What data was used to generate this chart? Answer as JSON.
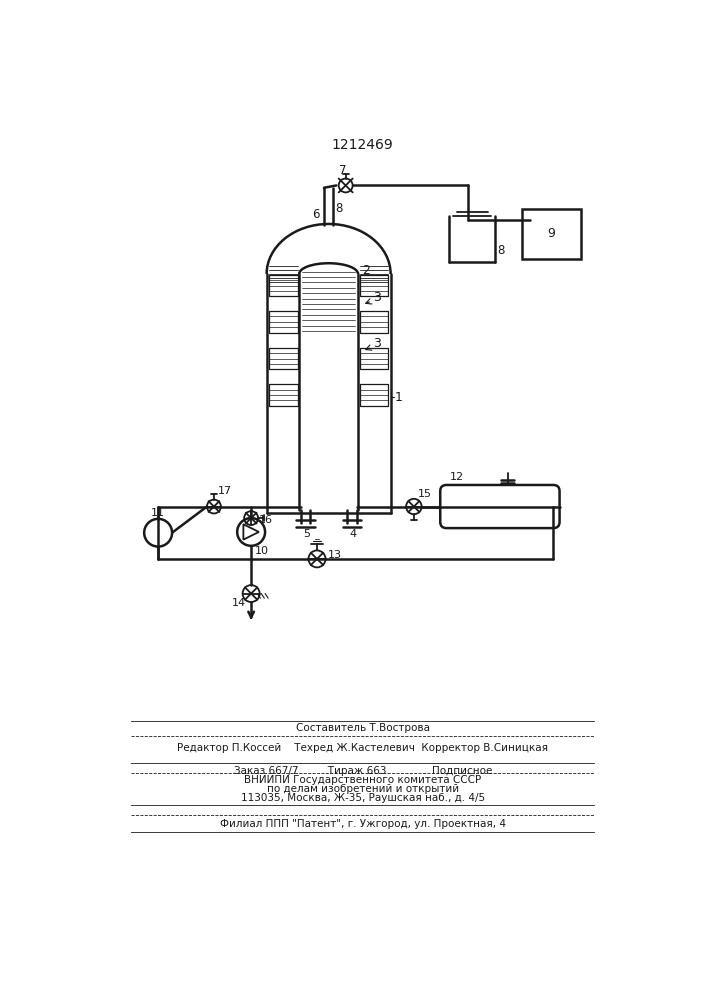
{
  "title": "1212469",
  "bg_color": "#ffffff",
  "line_color": "#1a1a1a",
  "footer_line1": "Составитель Т.Вострова",
  "footer_line2": "Редактор П.Коссей    Техред Ж.Кастелевич  Корректор В.Синицкая",
  "footer_line3": "Заказ 667/7         Тираж 663              Подписное",
  "footer_line4": "ВНИИПИ Государственного комитета СССР",
  "footer_line5": "по делам изобретений и открытий",
  "footer_line6": "113035, Москва, Ж-35, Раушская наб., д. 4/5",
  "footer_line7": "Филиал ППП \"Патент\", г. Ужгород, ул. Проектная, 4"
}
